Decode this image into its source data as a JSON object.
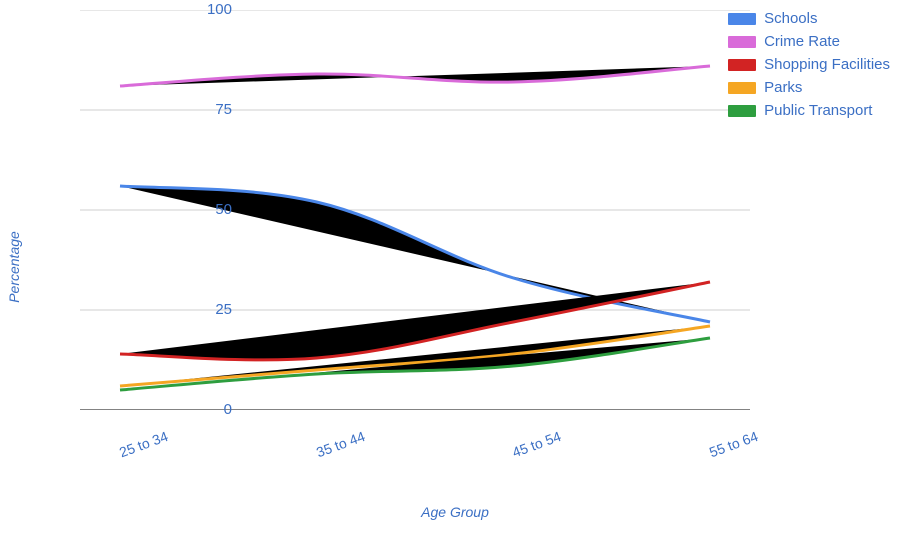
{
  "chart": {
    "type": "line",
    "background_color": "#ffffff",
    "grid_color": "#cfcfcf",
    "axis_color": "#5a5a5a",
    "y_axis": {
      "label": "Percentage",
      "min": 0,
      "max": 100,
      "tick_step": 25,
      "ticks": [
        0,
        25,
        50,
        75,
        100
      ],
      "label_color": "#3b6fc4",
      "label_fontsize": 14,
      "tick_fontsize": 15
    },
    "x_axis": {
      "label": "Age Group",
      "categories": [
        "25 to 34",
        "35 to 44",
        "45 to 54",
        "55 to 64"
      ],
      "label_color": "#3b6fc4",
      "label_fontsize": 14,
      "tick_fontsize": 14,
      "tick_rotation_deg": -20
    },
    "line_width": 3,
    "series": [
      {
        "name": "Schools",
        "color": "#4a86e8",
        "values": [
          56,
          52,
          33,
          22
        ]
      },
      {
        "name": "Crime Rate",
        "color": "#d96bd9",
        "values": [
          81,
          84,
          82,
          86
        ]
      },
      {
        "name": "Shopping Facilities",
        "color": "#d22323",
        "values": [
          14,
          13,
          22,
          32
        ]
      },
      {
        "name": "Parks",
        "color": "#f5a623",
        "values": [
          6,
          10,
          14,
          21
        ]
      },
      {
        "name": "Public Transport",
        "color": "#2e9e3f",
        "values": [
          5,
          9,
          11,
          18
        ]
      }
    ],
    "legend": {
      "position": "top-right",
      "text_color": "#3b6fc4",
      "fontsize": 15
    }
  }
}
